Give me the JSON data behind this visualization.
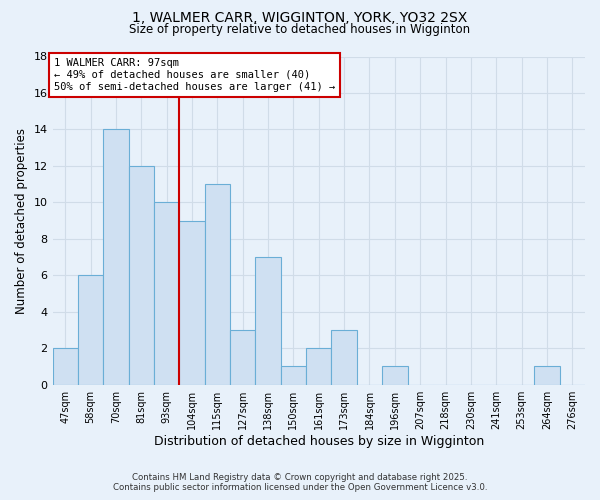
{
  "title1": "1, WALMER CARR, WIGGINTON, YORK, YO32 2SX",
  "title2": "Size of property relative to detached houses in Wigginton",
  "xlabel": "Distribution of detached houses by size in Wigginton",
  "ylabel": "Number of detached properties",
  "categories": [
    "47sqm",
    "58sqm",
    "70sqm",
    "81sqm",
    "93sqm",
    "104sqm",
    "115sqm",
    "127sqm",
    "138sqm",
    "150sqm",
    "161sqm",
    "173sqm",
    "184sqm",
    "196sqm",
    "207sqm",
    "218sqm",
    "230sqm",
    "241sqm",
    "253sqm",
    "264sqm",
    "276sqm"
  ],
  "values": [
    2,
    6,
    14,
    12,
    10,
    9,
    11,
    3,
    7,
    1,
    2,
    3,
    0,
    1,
    0,
    0,
    0,
    0,
    0,
    1,
    0
  ],
  "bar_color": "#cfe0f2",
  "bar_edge_color": "#6aaed6",
  "vline_x": 4.5,
  "vline_color": "#cc0000",
  "annotation_title": "1 WALMER CARR: 97sqm",
  "annotation_line1": "← 49% of detached houses are smaller (40)",
  "annotation_line2": "50% of semi-detached houses are larger (41) →",
  "annotation_box_color": "#ffffff",
  "annotation_box_edge": "#cc0000",
  "ylim": [
    0,
    18
  ],
  "yticks": [
    0,
    2,
    4,
    6,
    8,
    10,
    12,
    14,
    16,
    18
  ],
  "footer1": "Contains HM Land Registry data © Crown copyright and database right 2025.",
  "footer2": "Contains public sector information licensed under the Open Government Licence v3.0.",
  "bg_color": "#e8f1fa",
  "grid_color": "#d0dce8"
}
